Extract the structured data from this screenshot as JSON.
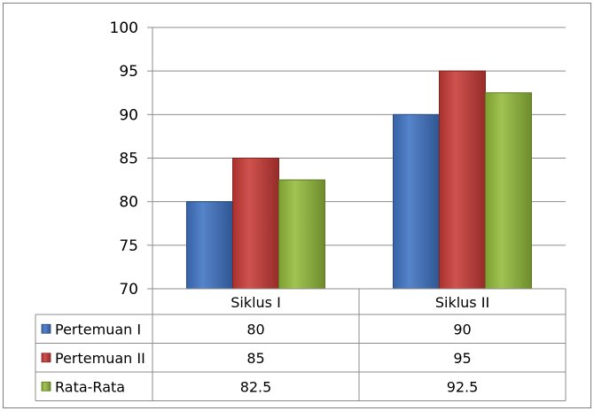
{
  "chart_data": {
    "type": "bar",
    "categories": [
      "Siklus I",
      "Siklus II"
    ],
    "series": [
      {
        "name": "Pertemuan I",
        "values": [
          80,
          90
        ],
        "value_labels": [
          "80",
          "90"
        ],
        "color": "#3f73c3"
      },
      {
        "name": "Pertemuan II",
        "values": [
          85,
          95
        ],
        "value_labels": [
          "85",
          "95"
        ],
        "color": "#c83a36"
      },
      {
        "name": "Rata-Rata",
        "values": [
          82.5,
          92.5
        ],
        "value_labels": [
          "82.5",
          "92.5"
        ],
        "color": "#93bb3a"
      }
    ],
    "y_ticks": [
      "70",
      "75",
      "80",
      "85",
      "90",
      "95",
      "100"
    ],
    "ylim": [
      70,
      100
    ],
    "grid": true,
    "legend": "data-table",
    "title": "",
    "xlabel": "",
    "ylabel": ""
  }
}
